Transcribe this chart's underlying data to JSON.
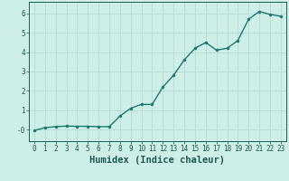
{
  "x": [
    0,
    1,
    2,
    3,
    4,
    5,
    6,
    7,
    8,
    9,
    10,
    11,
    12,
    13,
    14,
    15,
    16,
    17,
    18,
    19,
    20,
    21,
    22,
    23
  ],
  "y": [
    -0.05,
    0.1,
    0.15,
    0.18,
    0.17,
    0.17,
    0.15,
    0.15,
    0.7,
    1.1,
    1.3,
    1.3,
    2.2,
    2.8,
    3.6,
    4.2,
    4.5,
    4.1,
    4.2,
    4.6,
    5.7,
    6.1,
    5.95,
    5.85
  ],
  "xlabel": "Humidex (Indice chaleur)",
  "background_color": "#ceeee8",
  "grid_color": "#b8d8d2",
  "line_color": "#1a7a6e",
  "marker_color": "#1a7a6e",
  "ylim": [
    -0.6,
    6.6
  ],
  "xlim": [
    -0.5,
    23.5
  ],
  "yticks": [
    0,
    1,
    2,
    3,
    4,
    5,
    6
  ],
  "ytick_labels": [
    "-0",
    "1",
    "2",
    "3",
    "4",
    "5",
    "6"
  ],
  "xticks": [
    0,
    1,
    2,
    3,
    4,
    5,
    6,
    7,
    8,
    9,
    10,
    11,
    12,
    13,
    14,
    15,
    16,
    17,
    18,
    19,
    20,
    21,
    22,
    23
  ],
  "font_color": "#1a5c54",
  "tick_font_size": 5.5,
  "xlabel_font_size": 7.5,
  "line_width": 1.0,
  "marker_size": 2.2
}
